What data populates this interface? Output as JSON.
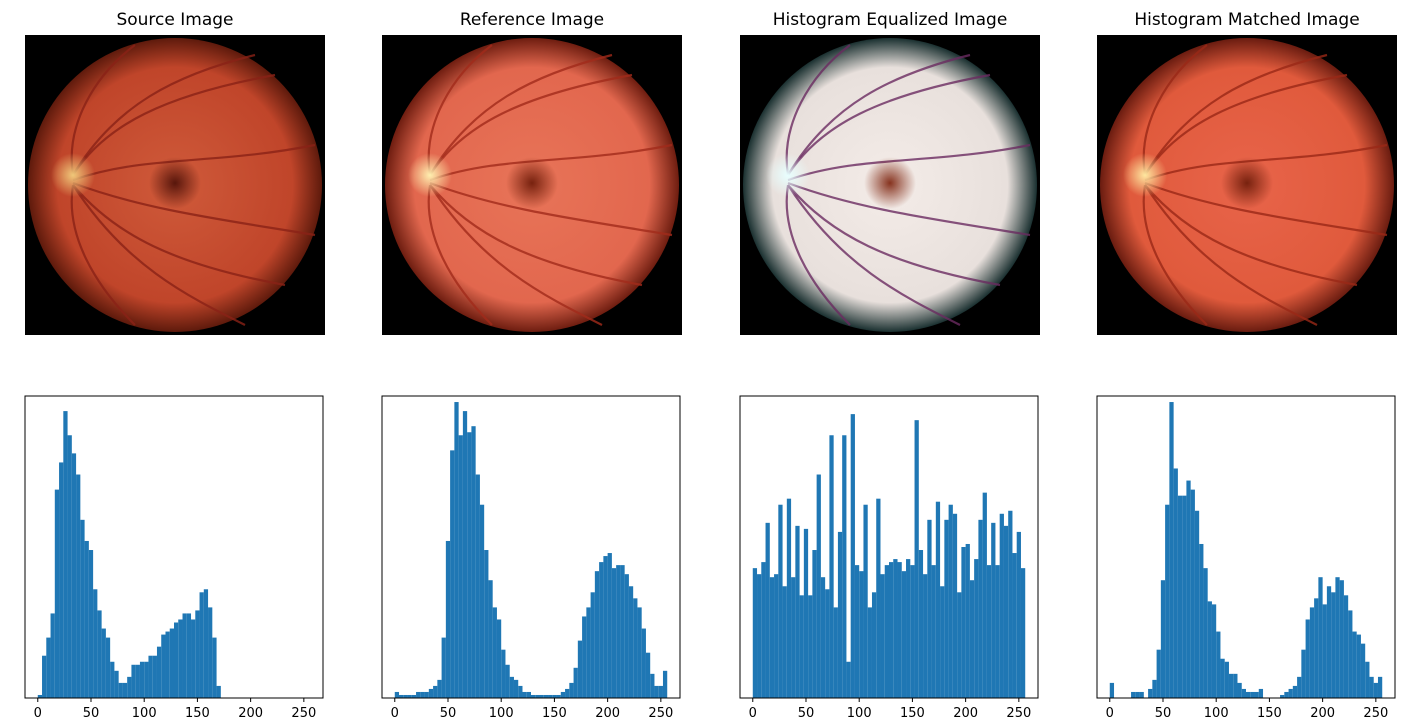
{
  "bar_color": "#1f77b4",
  "titles": [
    "Source Image",
    "Reference Image",
    "Histogram Equalized Image",
    "Histogram Matched Image"
  ],
  "images": [
    {
      "name": "source",
      "tint": "#c0452a",
      "edge": "#5e1a0c",
      "center": "#cf5a3a",
      "vessel": "#8a2216",
      "disc": "#f0c87a",
      "macula": "#4a0e06"
    },
    {
      "name": "reference",
      "tint": "#e2674e",
      "edge": "#6e1d10",
      "center": "#e87458",
      "vessel": "#a12a1a",
      "disc": "#fff0b0",
      "macula": "#6a1806"
    },
    {
      "name": "equalized",
      "tint": "#e8e0dc",
      "edge": "#1a3030",
      "center": "#f4ece8",
      "vessel": "#6a2a60",
      "disc": "#e8ffff",
      "macula": "#7a1e08"
    },
    {
      "name": "matched",
      "tint": "#e05a3c",
      "edge": "#6a1c10",
      "center": "#e8644a",
      "vessel": "#9a2816",
      "disc": "#ffe8a0",
      "macula": "#6a1a08"
    }
  ],
  "chart_data": [
    {
      "type": "bar",
      "title": "",
      "xlim": [
        -12,
        268
      ],
      "ylim": [
        0,
        1
      ],
      "xticks": [
        "0",
        "50",
        "100",
        "150",
        "200",
        "250"
      ],
      "bin_width": 4,
      "bins": [
        0,
        4,
        8,
        12,
        16,
        20,
        24,
        28,
        32,
        36,
        40,
        44,
        48,
        52,
        56,
        60,
        64,
        68,
        72,
        76,
        80,
        84,
        88,
        92,
        96,
        100,
        104,
        108,
        112,
        116,
        120,
        124,
        128,
        132,
        136,
        140,
        144,
        148,
        152,
        156,
        160,
        164,
        168,
        172,
        176,
        180,
        184,
        188,
        192,
        196,
        200,
        204,
        208,
        212,
        216,
        220,
        224,
        228,
        232,
        236,
        240,
        244,
        248,
        252
      ],
      "values": [
        0.01,
        0.14,
        0.2,
        0.28,
        0.69,
        0.78,
        0.95,
        0.87,
        0.81,
        0.74,
        0.59,
        0.52,
        0.49,
        0.36,
        0.29,
        0.23,
        0.2,
        0.12,
        0.09,
        0.05,
        0.05,
        0.07,
        0.11,
        0.11,
        0.12,
        0.12,
        0.14,
        0.14,
        0.17,
        0.21,
        0.22,
        0.23,
        0.25,
        0.26,
        0.28,
        0.28,
        0.26,
        0.29,
        0.35,
        0.36,
        0.3,
        0.2,
        0.04,
        0.0,
        0.0,
        0.0,
        0.0,
        0.0,
        0.0,
        0.0,
        0.0,
        0.0,
        0.0,
        0.0,
        0.0,
        0.0,
        0.0,
        0.0,
        0.0,
        0.0,
        0.0,
        0.0,
        0.0,
        0.0
      ]
    },
    {
      "type": "bar",
      "title": "",
      "xlim": [
        -12,
        268
      ],
      "ylim": [
        0,
        1
      ],
      "xticks": [
        "0",
        "50",
        "100",
        "150",
        "200",
        "250"
      ],
      "bin_width": 4,
      "bins": [
        0,
        4,
        8,
        12,
        16,
        20,
        24,
        28,
        32,
        36,
        40,
        44,
        48,
        52,
        56,
        60,
        64,
        68,
        72,
        76,
        80,
        84,
        88,
        92,
        96,
        100,
        104,
        108,
        112,
        116,
        120,
        124,
        128,
        132,
        136,
        140,
        144,
        148,
        152,
        156,
        160,
        164,
        168,
        172,
        176,
        180,
        184,
        188,
        192,
        196,
        200,
        204,
        208,
        212,
        216,
        220,
        224,
        228,
        232,
        236,
        240,
        244,
        248,
        252
      ],
      "values": [
        0.02,
        0.01,
        0.01,
        0.01,
        0.01,
        0.02,
        0.02,
        0.02,
        0.03,
        0.04,
        0.06,
        0.2,
        0.52,
        0.82,
        0.98,
        0.87,
        0.95,
        0.88,
        0.9,
        0.74,
        0.64,
        0.49,
        0.39,
        0.3,
        0.26,
        0.16,
        0.11,
        0.07,
        0.06,
        0.04,
        0.02,
        0.02,
        0.01,
        0.01,
        0.01,
        0.01,
        0.01,
        0.01,
        0.01,
        0.02,
        0.03,
        0.05,
        0.1,
        0.19,
        0.27,
        0.3,
        0.35,
        0.42,
        0.45,
        0.47,
        0.48,
        0.43,
        0.44,
        0.44,
        0.41,
        0.37,
        0.33,
        0.3,
        0.23,
        0.15,
        0.08,
        0.04,
        0.04,
        0.09
      ]
    },
    {
      "type": "bar",
      "title": "",
      "xlim": [
        -12,
        268
      ],
      "ylim": [
        0,
        1
      ],
      "xticks": [
        "0",
        "50",
        "100",
        "150",
        "200",
        "250"
      ],
      "bin_width": 4,
      "bins": [
        0,
        4,
        8,
        12,
        16,
        20,
        24,
        28,
        32,
        36,
        40,
        44,
        48,
        52,
        56,
        60,
        64,
        68,
        72,
        76,
        80,
        84,
        88,
        92,
        96,
        100,
        104,
        108,
        112,
        116,
        120,
        124,
        128,
        132,
        136,
        140,
        144,
        148,
        152,
        156,
        160,
        164,
        168,
        172,
        176,
        180,
        184,
        188,
        192,
        196,
        200,
        204,
        208,
        212,
        216,
        220,
        224,
        228,
        232,
        236,
        240,
        244,
        248,
        252
      ],
      "values": [
        0.43,
        0.41,
        0.45,
        0.58,
        0.4,
        0.41,
        0.64,
        0.37,
        0.66,
        0.4,
        0.57,
        0.34,
        0.56,
        0.34,
        0.49,
        0.74,
        0.4,
        0.36,
        0.87,
        0.3,
        0.55,
        0.87,
        0.12,
        0.94,
        0.44,
        0.42,
        0.64,
        0.3,
        0.35,
        0.66,
        0.41,
        0.44,
        0.45,
        0.46,
        0.45,
        0.42,
        0.46,
        0.44,
        0.92,
        0.49,
        0.41,
        0.59,
        0.44,
        0.65,
        0.37,
        0.59,
        0.64,
        0.61,
        0.35,
        0.5,
        0.51,
        0.39,
        0.46,
        0.59,
        0.68,
        0.44,
        0.58,
        0.44,
        0.61,
        0.57,
        0.62,
        0.48,
        0.55,
        0.43
      ]
    },
    {
      "type": "bar",
      "title": "",
      "xlim": [
        -12,
        268
      ],
      "ylim": [
        0,
        1
      ],
      "xticks": [
        "0",
        "50",
        "100",
        "150",
        "200",
        "250"
      ],
      "bin_width": 4,
      "bins": [
        0,
        4,
        8,
        12,
        16,
        20,
        24,
        28,
        32,
        36,
        40,
        44,
        48,
        52,
        56,
        60,
        64,
        68,
        72,
        76,
        80,
        84,
        88,
        92,
        96,
        100,
        104,
        108,
        112,
        116,
        120,
        124,
        128,
        132,
        136,
        140,
        144,
        148,
        152,
        156,
        160,
        164,
        168,
        172,
        176,
        180,
        184,
        188,
        192,
        196,
        200,
        204,
        208,
        212,
        216,
        220,
        224,
        228,
        232,
        236,
        240,
        244,
        248,
        252
      ],
      "values": [
        0.05,
        0.0,
        0.0,
        0.0,
        0.0,
        0.02,
        0.02,
        0.02,
        0.0,
        0.03,
        0.06,
        0.16,
        0.39,
        0.64,
        0.98,
        0.76,
        0.67,
        0.67,
        0.72,
        0.69,
        0.62,
        0.51,
        0.43,
        0.32,
        0.31,
        0.22,
        0.13,
        0.12,
        0.08,
        0.08,
        0.05,
        0.03,
        0.02,
        0.02,
        0.02,
        0.03,
        0.0,
        0.0,
        0.0,
        0.0,
        0.01,
        0.02,
        0.03,
        0.04,
        0.07,
        0.16,
        0.26,
        0.3,
        0.33,
        0.4,
        0.31,
        0.37,
        0.35,
        0.4,
        0.39,
        0.34,
        0.29,
        0.22,
        0.21,
        0.18,
        0.12,
        0.07,
        0.05,
        0.07
      ]
    }
  ]
}
